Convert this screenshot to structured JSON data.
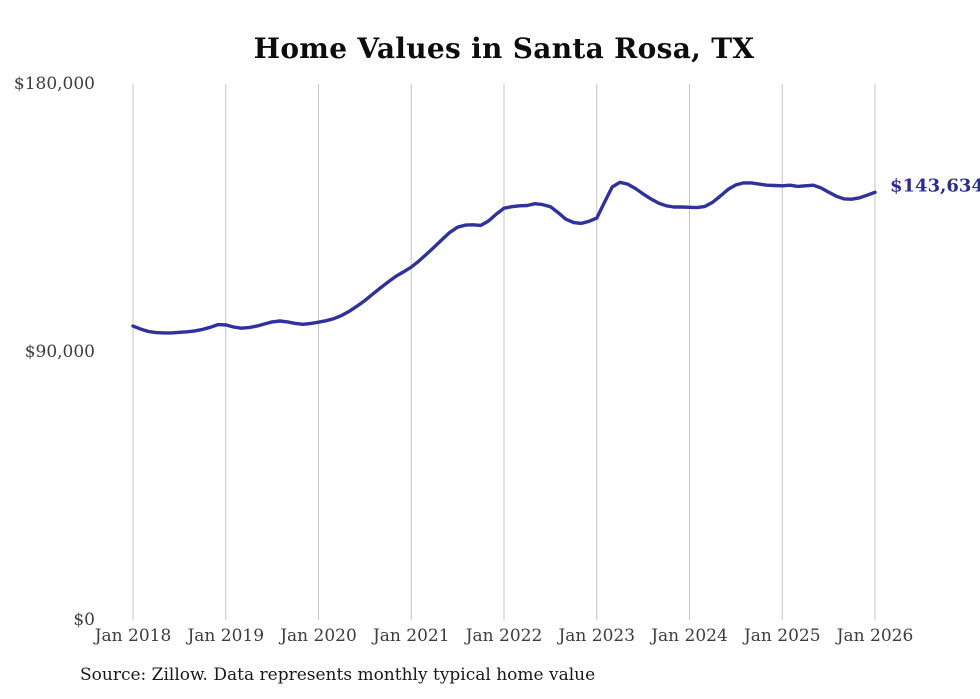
{
  "title": "Home Values in Santa Rosa, TX",
  "source_note": "Source: Zillow. Data represents monthly typical home value",
  "colors": {
    "line": "#31319b",
    "end_label": "#2b2b93",
    "gridline": "#c6c6c6",
    "tick_text": "#3d3d3d",
    "title_text": "#0d0d0d",
    "source_text": "#191919",
    "background": "#ffffff"
  },
  "chart_data": {
    "type": "line",
    "title": "Home Values in Santa Rosa, TX",
    "xlabel": "",
    "ylabel": "",
    "x_ticks": [
      "Jan 2018",
      "Jan 2019",
      "Jan 2020",
      "Jan 2021",
      "Jan 2022",
      "Jan 2023",
      "Jan 2024",
      "Jan 2025",
      "Jan 2026"
    ],
    "y_ticks": [
      "$180,000",
      "$90,000",
      "$0"
    ],
    "ylim": [
      0,
      180000
    ],
    "grid": "vertical-only",
    "legend": "none",
    "x_unit": "month",
    "x_start": "Jan 2018",
    "x_end": "Jan 2026",
    "series": [
      {
        "name": "Monthly typical home value",
        "final_label": "$143,634",
        "final_value": 143634,
        "values": [
          98700,
          97700,
          96900,
          96500,
          96400,
          96400,
          96600,
          96800,
          97100,
          97600,
          98300,
          99200,
          99100,
          98400,
          98000,
          98200,
          98700,
          99400,
          100100,
          100400,
          100100,
          99600,
          99300,
          99600,
          100000,
          100500,
          101200,
          102300,
          103700,
          105400,
          107300,
          109400,
          111500,
          113500,
          115400,
          116900,
          118500,
          120600,
          122900,
          125300,
          127800,
          130200,
          131900,
          132600,
          132700,
          132500,
          134000,
          136300,
          138300,
          138800,
          139100,
          139200,
          139800,
          139500,
          138800,
          136800,
          134600,
          133500,
          133200,
          133900,
          135000,
          140300,
          145400,
          147000,
          146400,
          144900,
          143100,
          141400,
          140000,
          139100,
          138700,
          138700,
          138600,
          138500,
          138900,
          140300,
          142400,
          144600,
          146100,
          146800,
          146800,
          146400,
          146000,
          145900,
          145800,
          146000,
          145600,
          145800,
          146000,
          145100,
          143700,
          142300,
          141400,
          141300,
          141800,
          142700,
          143634
        ]
      }
    ]
  }
}
